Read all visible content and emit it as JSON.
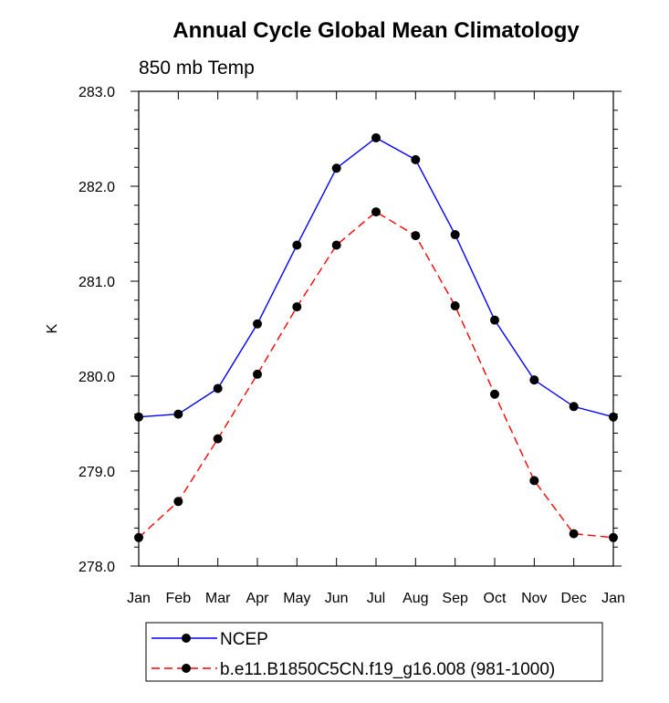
{
  "chart_data": {
    "type": "line",
    "title": "Annual Cycle Global Mean Climatology",
    "subtitle": "850 mb Temp",
    "ylabel": "K",
    "xlabel": "",
    "categories": [
      "Jan",
      "Feb",
      "Mar",
      "Apr",
      "May",
      "Jun",
      "Jul",
      "Aug",
      "Sep",
      "Oct",
      "Nov",
      "Dec",
      "Jan"
    ],
    "ylim": [
      278.0,
      283.0
    ],
    "yticks": [
      "278.0",
      "279.0",
      "280.0",
      "281.0",
      "282.0",
      "283.0"
    ],
    "grid": false,
    "legend_position": "bottom",
    "series": [
      {
        "name": "NCEP",
        "color": "#0000ff",
        "dash": "solid",
        "marker": "filled-circle",
        "values": [
          279.57,
          279.6,
          279.87,
          280.55,
          281.38,
          282.19,
          282.51,
          282.28,
          281.49,
          280.59,
          279.96,
          279.68,
          279.57
        ]
      },
      {
        "name": "b.e11.B1850C5CN.f19_g16.008 (981-1000)",
        "color": "#ff0000",
        "dash": "dashed",
        "marker": "filled-circle",
        "values": [
          278.3,
          278.68,
          279.34,
          280.02,
          280.73,
          281.38,
          281.73,
          281.48,
          280.74,
          279.81,
          278.9,
          278.34,
          278.3
        ]
      }
    ]
  }
}
